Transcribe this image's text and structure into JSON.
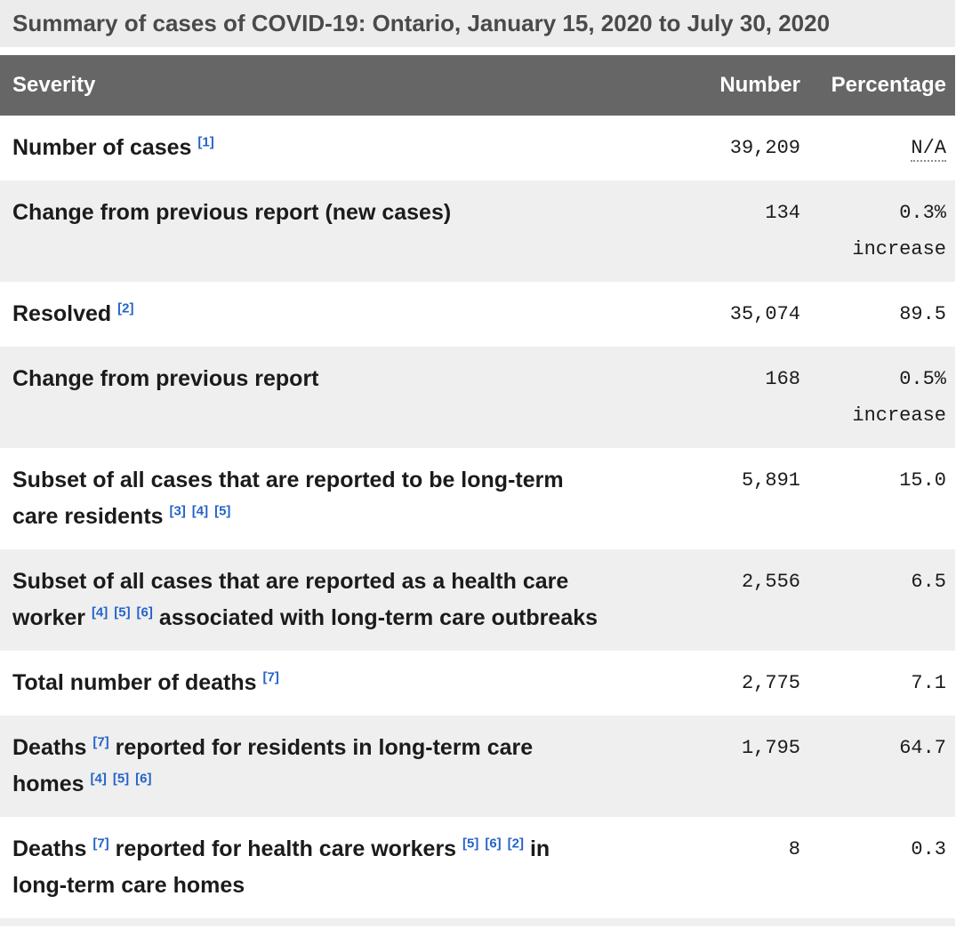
{
  "title": "Summary of cases of COVID-19: Ontario, January 15, 2020 to July 30, 2020",
  "table": {
    "columns": [
      "Severity",
      "Number",
      "Percentage"
    ],
    "rows": [
      {
        "label": [
          {
            "text": "Number of cases"
          },
          {
            "ref": "[1]"
          }
        ],
        "number": "39,209",
        "percentage": {
          "lines": [
            "N/A"
          ],
          "abbr": true
        }
      },
      {
        "label": [
          {
            "text": "Change from previous report (new cases)"
          }
        ],
        "number": "134",
        "percentage": {
          "lines": [
            "0.3%",
            "increase"
          ],
          "abbr": false
        }
      },
      {
        "label": [
          {
            "text": "Resolved"
          },
          {
            "ref": "[2]"
          }
        ],
        "number": "35,074",
        "percentage": {
          "lines": [
            "89.5"
          ],
          "abbr": false
        }
      },
      {
        "label": [
          {
            "text": "Change from previous report"
          }
        ],
        "number": "168",
        "percentage": {
          "lines": [
            "0.5%",
            "increase"
          ],
          "abbr": false
        }
      },
      {
        "label": [
          {
            "text": "Subset of all cases that are reported to be long-term care residents"
          },
          {
            "ref": "[3]"
          },
          {
            "ref": "[4]"
          },
          {
            "ref": "[5]"
          }
        ],
        "number": "5,891",
        "percentage": {
          "lines": [
            "15.0"
          ],
          "abbr": false
        }
      },
      {
        "label": [
          {
            "text": "Subset of all cases that are reported as a health care worker"
          },
          {
            "ref": "[4]"
          },
          {
            "ref": "[5]"
          },
          {
            "ref": "[6]"
          },
          {
            "text": "associated with long-term care outbreaks"
          }
        ],
        "number": "2,556",
        "percentage": {
          "lines": [
            "6.5"
          ],
          "abbr": false
        }
      },
      {
        "label": [
          {
            "text": "Total number of deaths"
          },
          {
            "ref": "[7]"
          }
        ],
        "number": "2,775",
        "percentage": {
          "lines": [
            "7.1"
          ],
          "abbr": false
        }
      },
      {
        "label": [
          {
            "text": "Deaths"
          },
          {
            "ref": "[7]"
          },
          {
            "text": "reported for residents in long-term care homes"
          },
          {
            "ref": "[4]"
          },
          {
            "ref": "[5]"
          },
          {
            "ref": "[6]"
          }
        ],
        "number": "1,795",
        "percentage": {
          "lines": [
            "64.7"
          ],
          "abbr": false
        }
      },
      {
        "label": [
          {
            "text": "Deaths"
          },
          {
            "ref": "[7]"
          },
          {
            "text": "reported for health care workers"
          },
          {
            "ref": "[5]"
          },
          {
            "ref": "[6]"
          },
          {
            "ref": "[2]"
          },
          {
            "text": "in long-term care homes"
          }
        ],
        "number": "8",
        "percentage": {
          "lines": [
            "0.3"
          ],
          "abbr": false
        }
      }
    ]
  },
  "colors": {
    "title_bg": "#ececec",
    "title_text": "#4a4a4a",
    "header_bg": "#666666",
    "header_text": "#ffffff",
    "alt_row_bg": "#efefef",
    "body_text": "#1b1b1b",
    "footnote_link": "#2563c9",
    "na_underline": "#8f8f8f"
  }
}
